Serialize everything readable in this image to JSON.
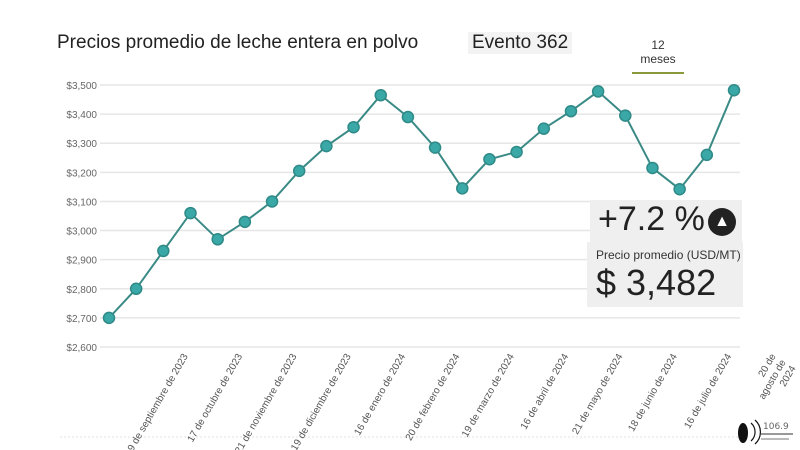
{
  "header": {
    "title": "Precios promedio de leche entera en polvo",
    "event": "Evento 362",
    "range_tab": "12 meses"
  },
  "summary": {
    "change": "+7.2 %",
    "change_icon": "arrow-up-circle-icon",
    "price_label": "Precio promedio (USD/MT)",
    "price": "$ 3,482"
  },
  "chart_data": {
    "type": "line",
    "title": "Precios promedio de leche entera en polvo",
    "xlabel": "",
    "ylabel": "",
    "ylim": [
      2600,
      3500
    ],
    "yticks": [
      "$2,600",
      "$2,700",
      "$2,800",
      "$2,900",
      "$3,000",
      "$3,100",
      "$3,200",
      "$3,300",
      "$3,400",
      "$3,500"
    ],
    "x_tick_labels": [
      "19 de septiembre de 2023",
      "17 de octubre de 2023",
      "21 de noviembre de 2023",
      "19 de diciembre de 2023",
      "16 de enero de 2024",
      "20 de febrero de 2024",
      "19 de marzo de 2024",
      "16 de abril de 2024",
      "21 de mayo de 2024",
      "18 de junio de 2024",
      "16 de julio de 2024",
      "20 de agosto de 2024"
    ],
    "values": [
      2700,
      2800,
      2930,
      3060,
      2970,
      3030,
      3100,
      3205,
      3290,
      3355,
      3465,
      3390,
      3285,
      3145,
      3245,
      3270,
      3350,
      3410,
      3478,
      3395,
      3215,
      3142,
      3260,
      3482
    ],
    "grid": true,
    "color": "#3aa8a6"
  },
  "logo": {
    "text": "106.9"
  }
}
